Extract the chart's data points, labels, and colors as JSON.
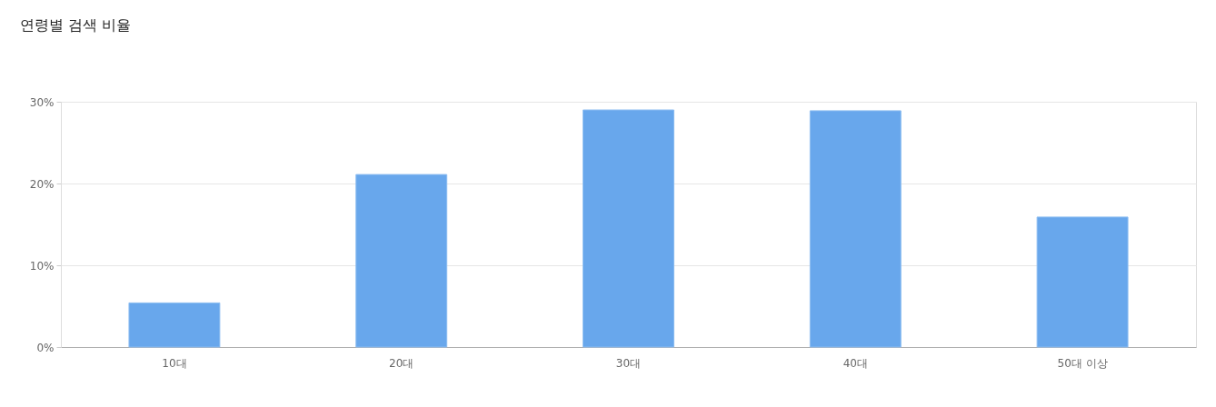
{
  "chart_data": {
    "type": "bar",
    "title": "연령별 검색 비율",
    "categories": [
      "10대",
      "20대",
      "30대",
      "40대",
      "50대 이상"
    ],
    "values": [
      5.4,
      21.1,
      29.0,
      28.9,
      15.9
    ],
    "color": "#68a7ec",
    "ylim": [
      0,
      30
    ],
    "yticks": [
      {
        "value": 0,
        "label": "0%"
      },
      {
        "value": 10,
        "label": "10%"
      },
      {
        "value": 20,
        "label": "20%"
      },
      {
        "value": 30,
        "label": "30%"
      }
    ],
    "grid": "y"
  }
}
